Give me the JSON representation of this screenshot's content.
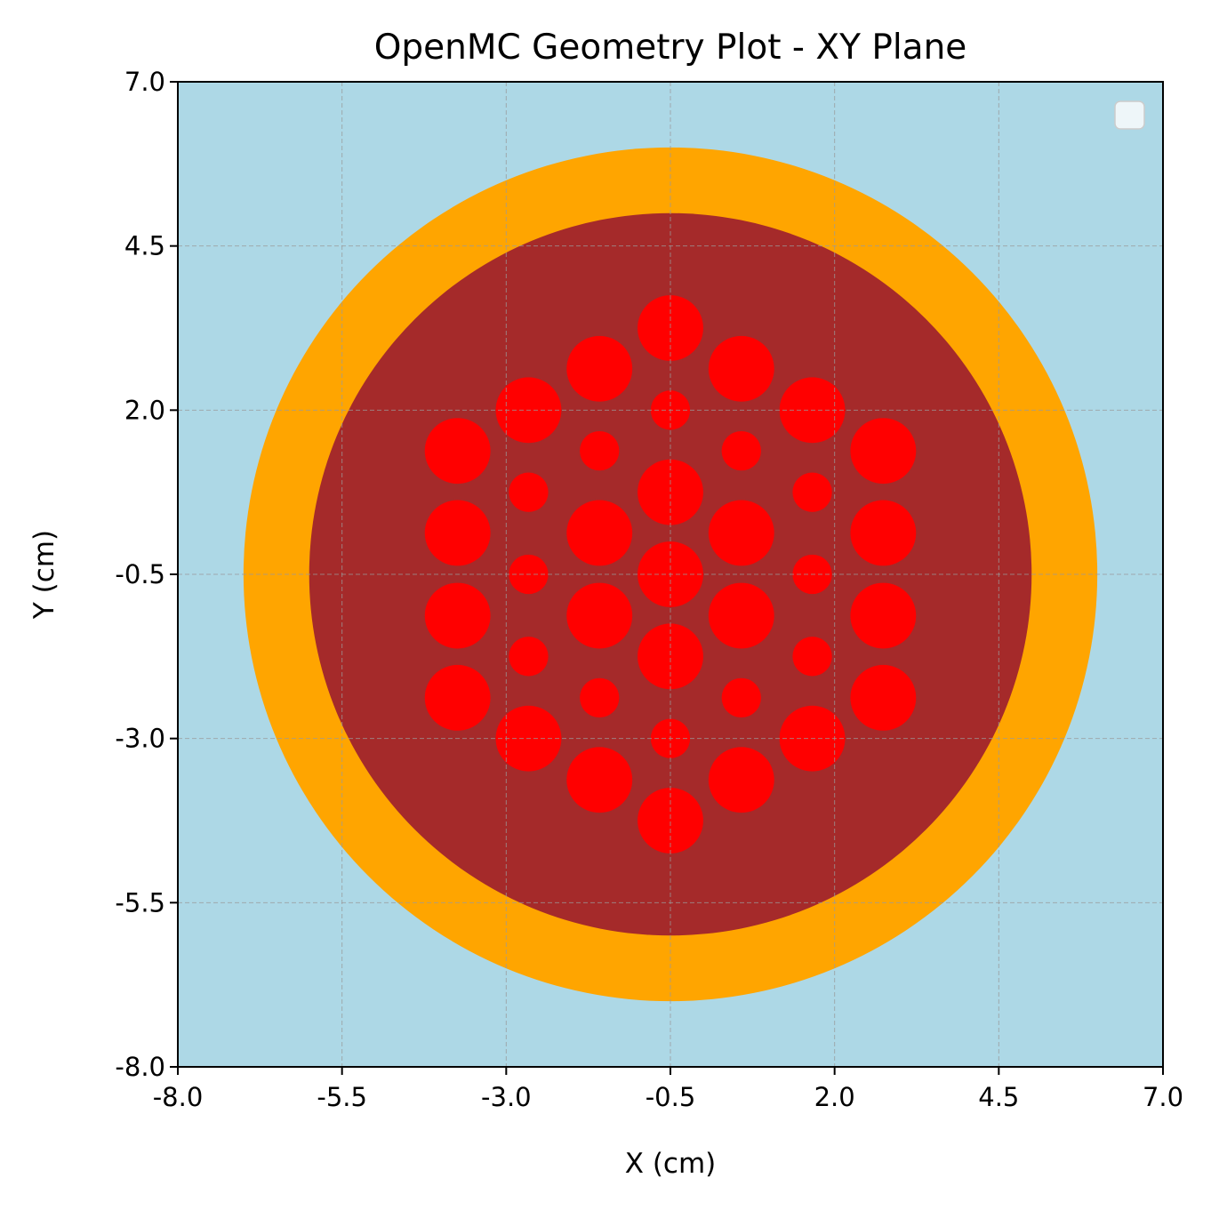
{
  "chart_data": {
    "type": "heatmap",
    "title": "OpenMC Geometry Plot - XY Plane",
    "xlabel": "X (cm)",
    "ylabel": "Y (cm)",
    "xlim": [
      -8.0,
      7.0
    ],
    "ylim": [
      -8.0,
      7.0
    ],
    "x_ticks": [
      "-8.0",
      "-5.5",
      "-3.0",
      "-0.5",
      "2.0",
      "4.5",
      "7.0"
    ],
    "y_ticks": [
      "-8.0",
      "-5.5",
      "-3.0",
      "-0.5",
      "2.0",
      "4.5",
      "7.0"
    ],
    "grid": true,
    "legend": {
      "placement": "upper right",
      "entries": []
    },
    "colors": {
      "background": "#add8e6",
      "outer_ring": "#ffa500",
      "moderator": "#a52a2a",
      "fuel_pins": "#ff0000"
    },
    "regions": [
      {
        "center": [
          -0.5,
          -0.5
        ],
        "radius": 6.5,
        "color": "#ffa500"
      },
      {
        "center": [
          -0.5,
          -0.5
        ],
        "radius": 5.5,
        "color": "#a52a2a"
      }
    ],
    "pins": [
      {
        "x": -0.5,
        "y": 3.25,
        "r": 0.5
      },
      {
        "x": -1.58,
        "y": 2.63,
        "r": 0.5
      },
      {
        "x": 0.58,
        "y": 2.63,
        "r": 0.5
      },
      {
        "x": -2.66,
        "y": 2.0,
        "r": 0.5
      },
      {
        "x": 1.66,
        "y": 2.0,
        "r": 0.5
      },
      {
        "x": -3.74,
        "y": 1.38,
        "r": 0.5
      },
      {
        "x": 2.74,
        "y": 1.38,
        "r": 0.5
      },
      {
        "x": -3.74,
        "y": 0.13,
        "r": 0.5
      },
      {
        "x": 2.74,
        "y": 0.13,
        "r": 0.5
      },
      {
        "x": -3.74,
        "y": -1.13,
        "r": 0.5
      },
      {
        "x": 2.74,
        "y": -1.13,
        "r": 0.5
      },
      {
        "x": -3.74,
        "y": -2.38,
        "r": 0.5
      },
      {
        "x": 2.74,
        "y": -2.38,
        "r": 0.5
      },
      {
        "x": -2.66,
        "y": -3.0,
        "r": 0.5
      },
      {
        "x": 1.66,
        "y": -3.0,
        "r": 0.5
      },
      {
        "x": -1.58,
        "y": -3.63,
        "r": 0.5
      },
      {
        "x": 0.58,
        "y": -3.63,
        "r": 0.5
      },
      {
        "x": -0.5,
        "y": -4.25,
        "r": 0.5
      },
      {
        "x": -1.58,
        "y": 0.13,
        "r": 0.5
      },
      {
        "x": 0.58,
        "y": 0.13,
        "r": 0.5
      },
      {
        "x": -1.58,
        "y": -1.13,
        "r": 0.5
      },
      {
        "x": 0.58,
        "y": -1.13,
        "r": 0.5
      },
      {
        "x": -0.5,
        "y": 0.75,
        "r": 0.5
      },
      {
        "x": -0.5,
        "y": -0.5,
        "r": 0.5
      },
      {
        "x": -0.5,
        "y": -1.75,
        "r": 0.5
      },
      {
        "x": -0.5,
        "y": 2.0,
        "r": 0.3
      },
      {
        "x": -1.58,
        "y": 1.38,
        "r": 0.3
      },
      {
        "x": 0.58,
        "y": 1.38,
        "r": 0.3
      },
      {
        "x": -2.66,
        "y": 0.75,
        "r": 0.3
      },
      {
        "x": 1.66,
        "y": 0.75,
        "r": 0.3
      },
      {
        "x": -2.66,
        "y": -0.5,
        "r": 0.3
      },
      {
        "x": 1.66,
        "y": -0.5,
        "r": 0.3
      },
      {
        "x": -2.66,
        "y": -1.75,
        "r": 0.3
      },
      {
        "x": 1.66,
        "y": -1.75,
        "r": 0.3
      },
      {
        "x": -1.58,
        "y": -2.38,
        "r": 0.3
      },
      {
        "x": 0.58,
        "y": -2.38,
        "r": 0.3
      },
      {
        "x": -0.5,
        "y": -3.0,
        "r": 0.3
      }
    ]
  }
}
